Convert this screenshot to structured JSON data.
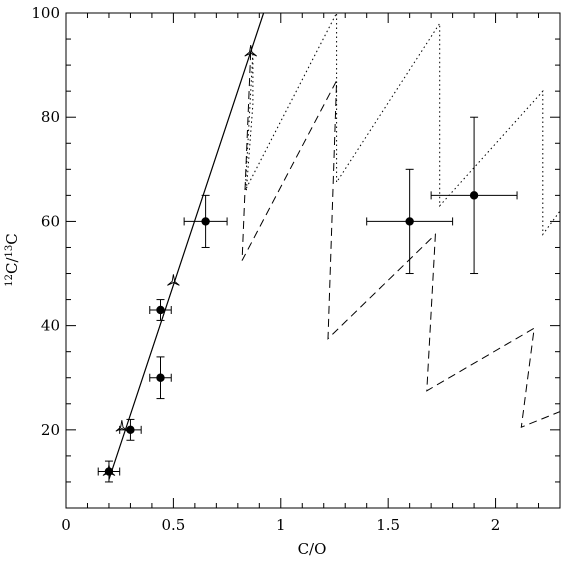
{
  "chart_data": {
    "type": "scatter",
    "title": "",
    "xlabel": "C/O",
    "ylabel_prefix": "12",
    "ylabel_mid": "C/",
    "ylabel_sup2": "13",
    "ylabel_suffix": "C",
    "xlim": [
      0,
      2.3
    ],
    "ylim": [
      5,
      100
    ],
    "xticks": [
      0,
      0.5,
      1,
      1.5,
      2
    ],
    "xtick_labels": [
      "0",
      "0.5",
      "1",
      "1.5",
      "2"
    ],
    "yticks": [
      20,
      40,
      60,
      80,
      100
    ],
    "ytick_labels": [
      "20",
      "40",
      "60",
      "80",
      "100"
    ],
    "grid": false,
    "observations": [
      {
        "x": 0.2,
        "y": 12,
        "xerr": 0.05,
        "yerr_low": 2,
        "yerr_high": 2
      },
      {
        "x": 0.3,
        "y": 20,
        "xerr": 0.05,
        "yerr_low": 2,
        "yerr_high": 2
      },
      {
        "x": 0.44,
        "y": 43,
        "xerr": 0.05,
        "yerr_low": 2,
        "yerr_high": 2
      },
      {
        "x": 0.44,
        "y": 30,
        "xerr": 0.05,
        "yerr_low": 4,
        "yerr_high": 4
      },
      {
        "x": 0.65,
        "y": 60,
        "xerr": 0.1,
        "yerr_low": 5,
        "yerr_high": 5
      },
      {
        "x": 1.6,
        "y": 60,
        "xerr": 0.2,
        "yerr_low": 10,
        "yerr_high": 10
      },
      {
        "x": 1.9,
        "y": 65,
        "xerr": 0.2,
        "yerr_low": 15,
        "yerr_high": 15
      }
    ],
    "model_markers": [
      {
        "x": 0.2,
        "y": 12
      },
      {
        "x": 0.26,
        "y": 20.5
      },
      {
        "x": 0.5,
        "y": 48.5
      },
      {
        "x": 0.86,
        "y": 92.5
      }
    ],
    "solid_line": [
      [
        0.2,
        10.5
      ],
      [
        0.92,
        100
      ]
    ],
    "dotted_line": [
      [
        0.84,
        66
      ],
      [
        0.87,
        82.5
      ],
      [
        0.87,
        92.5
      ],
      [
        0.835,
        66
      ],
      [
        1.26,
        100
      ],
      [
        1.26,
        67.5
      ],
      [
        1.74,
        98
      ],
      [
        1.74,
        63
      ],
      [
        2.22,
        85
      ],
      [
        2.22,
        57.5
      ],
      [
        2.3,
        62
      ]
    ],
    "dashed_line": [
      [
        0.86,
        92.5
      ],
      [
        0.82,
        52.5
      ],
      [
        1.26,
        87
      ],
      [
        1.22,
        37.5
      ],
      [
        1.72,
        57.5
      ],
      [
        1.68,
        27.5
      ],
      [
        2.18,
        39.5
      ],
      [
        2.12,
        20.5
      ],
      [
        2.3,
        23.5
      ]
    ]
  }
}
